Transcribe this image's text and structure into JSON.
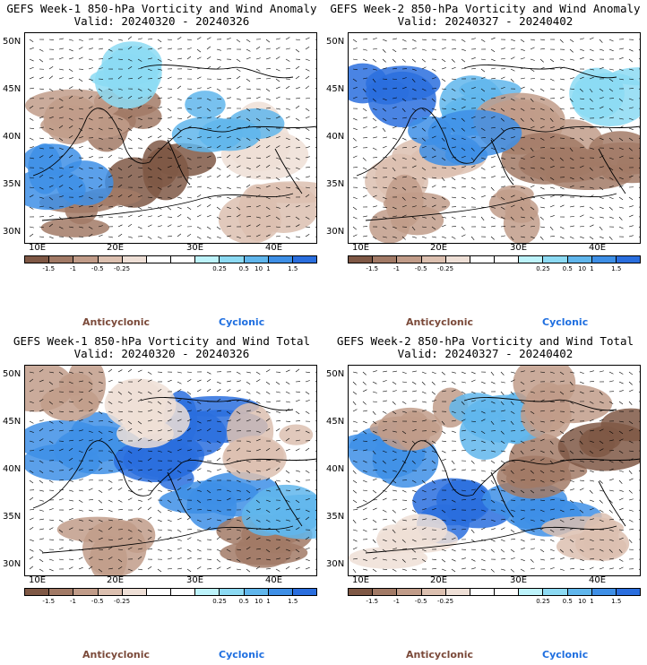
{
  "colors": {
    "anticyclonic_text": "#7b4a3a",
    "cyclonic_text": "#1f6fe0",
    "scale": [
      "#7f5845",
      "#a27a66",
      "#c19c89",
      "#dcc0b0",
      "#eedfd6",
      "#ffffff",
      "#ffffff",
      "#bdf3fb",
      "#8cdaf3",
      "#60b6ec",
      "#3e8fe6",
      "#2a6ede"
    ]
  },
  "colorbar_labels": [
    "-1.5",
    "-1",
    "-0.5",
    "-0.25",
    "0.25",
    "0.5",
    "1",
    "1.5"
  ],
  "colorbar_stray_label": "10",
  "lat_labels": [
    "50N",
    "45N",
    "40N",
    "35N",
    "30N"
  ],
  "lon_labels": [
    "10E",
    "20E",
    "30E",
    "40E"
  ],
  "legend": {
    "anticyclonic": "Anticyclonic",
    "cyclonic": "Cyclonic"
  },
  "panels": [
    {
      "title": "GEFS Week-1 850-hPa Vorticity and Wind Anomaly",
      "valid": "Valid: 20240320 - 20240326"
    },
    {
      "title": "GEFS Week-2 850-hPa Vorticity and Wind Anomaly",
      "valid": "Valid: 20240327 - 20240402"
    },
    {
      "title": "GEFS Week-1 850-hPa Vorticity and Wind Total",
      "valid": "Valid: 20240320 - 20240326"
    },
    {
      "title": "GEFS Week-2 850-hPa Vorticity and Wind Total",
      "valid": "Valid: 20240327 - 20240402"
    }
  ]
}
